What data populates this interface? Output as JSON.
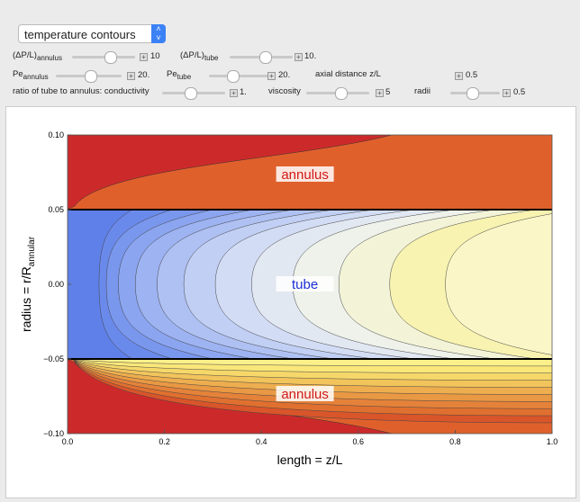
{
  "controls": {
    "dropdown": "temperature contours",
    "rows": [
      [
        {
          "label": "(ΔP/L)",
          "sub": "annulus",
          "value": "10"
        },
        {
          "label": "(ΔP/L)",
          "sub": "tube",
          "value": "10."
        }
      ],
      [
        {
          "label": "Pe",
          "sub": "annulus",
          "value": "20."
        },
        {
          "label": "Pe",
          "sub": "tube",
          "value": "20."
        },
        {
          "label": "axial distance z/L",
          "value": "0.5"
        }
      ],
      [
        {
          "label": "ratio of tube to annulus:  conductivity",
          "value": "1."
        },
        {
          "label": "viscosity",
          "value": "5"
        },
        {
          "label": "radii",
          "value": "0.5"
        }
      ]
    ]
  },
  "chart_data": {
    "type": "contour",
    "xlabel": "length = z/L",
    "ylabel": "radius = r/R",
    "ylabel_sub": "annular",
    "xlim": [
      0,
      1
    ],
    "ylim": [
      -0.1,
      0.1
    ],
    "xticks": [
      {
        "value": 0,
        "label": "0.0"
      },
      {
        "value": 0.2,
        "label": "0.2"
      },
      {
        "value": 0.4,
        "label": "0.4"
      },
      {
        "value": 0.6,
        "label": "0.6"
      },
      {
        "value": 0.8,
        "label": "0.8"
      },
      {
        "value": 1,
        "label": "1.0"
      }
    ],
    "yticks": [
      {
        "value": 0.1,
        "label": "0.10"
      },
      {
        "value": 0.05,
        "label": "0.05"
      },
      {
        "value": 0,
        "label": "0.00"
      },
      {
        "value": -0.05,
        "label": "−0.05"
      },
      {
        "value": -0.1,
        "label": "−0.10"
      }
    ],
    "annotations": [
      "annulus",
      "tube",
      "annulus"
    ]
  }
}
